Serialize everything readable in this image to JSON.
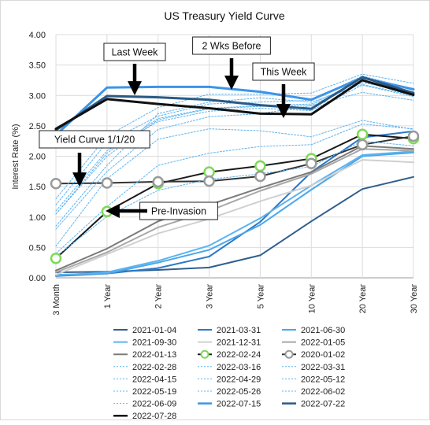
{
  "chart_data": {
    "type": "line",
    "title": "US Treasury Yield Curve",
    "ylabel": "Interest Rate (%)",
    "xlabel": "",
    "ylim": [
      0,
      4
    ],
    "yticks": [
      "0.00",
      "0.50",
      "1.00",
      "1.50",
      "2.00",
      "2.50",
      "3.00",
      "3.50",
      "4.00"
    ],
    "categories": [
      "3 Month",
      "1 Year",
      "2 Year",
      "3 Year",
      "5 Year",
      "10 Year",
      "20 Year",
      "30 Year"
    ],
    "grid": true,
    "legend_position": "bottom",
    "series": [
      {
        "name": "2021-01-04",
        "color": "#2f5f8f",
        "dash": "solid",
        "width": 2,
        "values": [
          0.09,
          0.1,
          0.13,
          0.17,
          0.37,
          0.93,
          1.46,
          1.66
        ]
      },
      {
        "name": "2021-03-31",
        "color": "#2e78c6",
        "dash": "solid",
        "width": 2,
        "values": [
          0.03,
          0.07,
          0.16,
          0.35,
          0.92,
          1.74,
          2.31,
          2.41
        ]
      },
      {
        "name": "2021-06-30",
        "color": "#4aa7ea",
        "dash": "solid",
        "width": 2,
        "values": [
          0.05,
          0.07,
          0.25,
          0.46,
          0.87,
          1.45,
          2.0,
          2.06
        ]
      },
      {
        "name": "2021-09-30",
        "color": "#5bb3f0",
        "dash": "solid",
        "width": 2,
        "values": [
          0.04,
          0.09,
          0.28,
          0.53,
          0.98,
          1.52,
          2.02,
          2.08
        ]
      },
      {
        "name": "2021-12-31",
        "color": "#d0d0d0",
        "dash": "solid",
        "width": 2,
        "values": [
          0.05,
          0.39,
          0.73,
          0.97,
          1.26,
          1.52,
          1.94,
          1.9
        ]
      },
      {
        "name": "2022-01-05",
        "color": "#a8a8a8",
        "dash": "solid",
        "width": 2,
        "values": [
          0.09,
          0.42,
          0.83,
          1.1,
          1.43,
          1.71,
          2.12,
          2.09
        ]
      },
      {
        "name": "2022-01-13",
        "color": "#7a7a7a",
        "dash": "solid",
        "width": 2,
        "values": [
          0.12,
          0.48,
          0.93,
          1.2,
          1.48,
          1.74,
          2.17,
          2.12
        ]
      },
      {
        "name": "2022-02-24",
        "color": "#1a1a1a",
        "dash": "solid",
        "width": 2,
        "marker": "green-circle",
        "values": [
          0.32,
          1.09,
          1.55,
          1.74,
          1.84,
          1.96,
          2.36,
          2.29
        ]
      },
      {
        "name": "2020-01-02",
        "color": "#333333",
        "dash": "solid",
        "width": 2,
        "marker": "gray-circle",
        "values": [
          1.55,
          1.56,
          1.58,
          1.59,
          1.67,
          1.88,
          2.19,
          2.33
        ]
      },
      {
        "name": "2022-02-28",
        "color": "#5bb3f0",
        "dash": "dotted",
        "width": 1,
        "values": [
          0.35,
          1.01,
          1.44,
          1.62,
          1.71,
          1.83,
          2.25,
          2.17
        ]
      },
      {
        "name": "2022-03-16",
        "color": "#5bb3f0",
        "dash": "dotted",
        "width": 1,
        "values": [
          0.4,
          1.17,
          1.85,
          2.05,
          2.16,
          2.19,
          2.53,
          2.45
        ]
      },
      {
        "name": "2022-03-31",
        "color": "#5bb3f0",
        "dash": "dotted",
        "width": 1,
        "values": [
          0.52,
          1.63,
          2.28,
          2.45,
          2.42,
          2.32,
          2.59,
          2.44
        ]
      },
      {
        "name": "2022-04-15",
        "color": "#5bb3f0",
        "dash": "dotted",
        "width": 1,
        "values": [
          0.8,
          1.75,
          2.44,
          2.65,
          2.7,
          2.83,
          3.05,
          2.92
        ]
      },
      {
        "name": "2022-04-29",
        "color": "#5bb3f0",
        "dash": "dotted",
        "width": 1,
        "values": [
          0.85,
          1.85,
          2.7,
          2.89,
          2.96,
          2.89,
          3.18,
          3.0
        ]
      },
      {
        "name": "2022-05-12",
        "color": "#5bb3f0",
        "dash": "dotted",
        "width": 1,
        "values": [
          1.05,
          2.0,
          2.6,
          2.78,
          2.82,
          2.84,
          3.21,
          3.06
        ]
      },
      {
        "name": "2022-05-19",
        "color": "#5bb3f0",
        "dash": "dotted",
        "width": 1,
        "values": [
          1.05,
          2.05,
          2.62,
          2.79,
          2.83,
          2.86,
          3.25,
          3.06
        ]
      },
      {
        "name": "2022-05-26",
        "color": "#5bb3f0",
        "dash": "dotted",
        "width": 1,
        "values": [
          1.1,
          2.09,
          2.57,
          2.74,
          2.79,
          2.75,
          3.17,
          2.98
        ]
      },
      {
        "name": "2022-06-02",
        "color": "#5bb3f0",
        "dash": "dotted",
        "width": 1,
        "values": [
          1.2,
          2.23,
          2.66,
          2.86,
          2.89,
          2.92,
          3.32,
          3.1
        ]
      },
      {
        "name": "2022-06-09",
        "color": "#5bb3f0",
        "dash": "dotted",
        "width": 1,
        "values": [
          1.3,
          2.33,
          2.8,
          3.02,
          3.02,
          3.04,
          3.35,
          3.2
        ]
      },
      {
        "name": "2022-07-15",
        "color": "#3d94e8",
        "dash": "solid",
        "width": 3,
        "values": [
          2.35,
          3.13,
          3.14,
          3.14,
          3.06,
          2.93,
          3.29,
          3.1
        ]
      },
      {
        "name": "2022-07-22",
        "color": "#2b5a85",
        "dash": "solid",
        "width": 3,
        "values": [
          2.43,
          2.99,
          2.97,
          2.93,
          2.84,
          2.78,
          3.3,
          3.04
        ]
      },
      {
        "name": "2022-07-28",
        "color": "#111111",
        "dash": "solid",
        "width": 3,
        "values": [
          2.45,
          2.94,
          2.86,
          2.79,
          2.7,
          2.69,
          3.25,
          3.01
        ]
      }
    ],
    "annotations": [
      {
        "text": "Last Week",
        "box_center": [
          170,
          65
        ],
        "arrow_from": [
          170,
          80
        ],
        "arrow_to": [
          170,
          112
        ]
      },
      {
        "text": "2 Wks Before",
        "box_center": [
          293,
          57
        ],
        "arrow_from": [
          293,
          73
        ],
        "arrow_to": [
          293,
          105
        ]
      },
      {
        "text": "This Week",
        "box_center": [
          359,
          90
        ],
        "arrow_from": [
          359,
          106
        ],
        "arrow_to": [
          359,
          141
        ]
      },
      {
        "text": "Yield Curve 1/1/20",
        "box_center": [
          119,
          176
        ],
        "arrow_from": [
          100,
          193
        ],
        "arrow_to": [
          100,
          228
        ]
      },
      {
        "text": "Pre-Invasion",
        "box_center": [
          226,
          267
        ],
        "arrow_from": [
          186,
          267
        ],
        "arrow_to": [
          141,
          267
        ]
      }
    ]
  }
}
